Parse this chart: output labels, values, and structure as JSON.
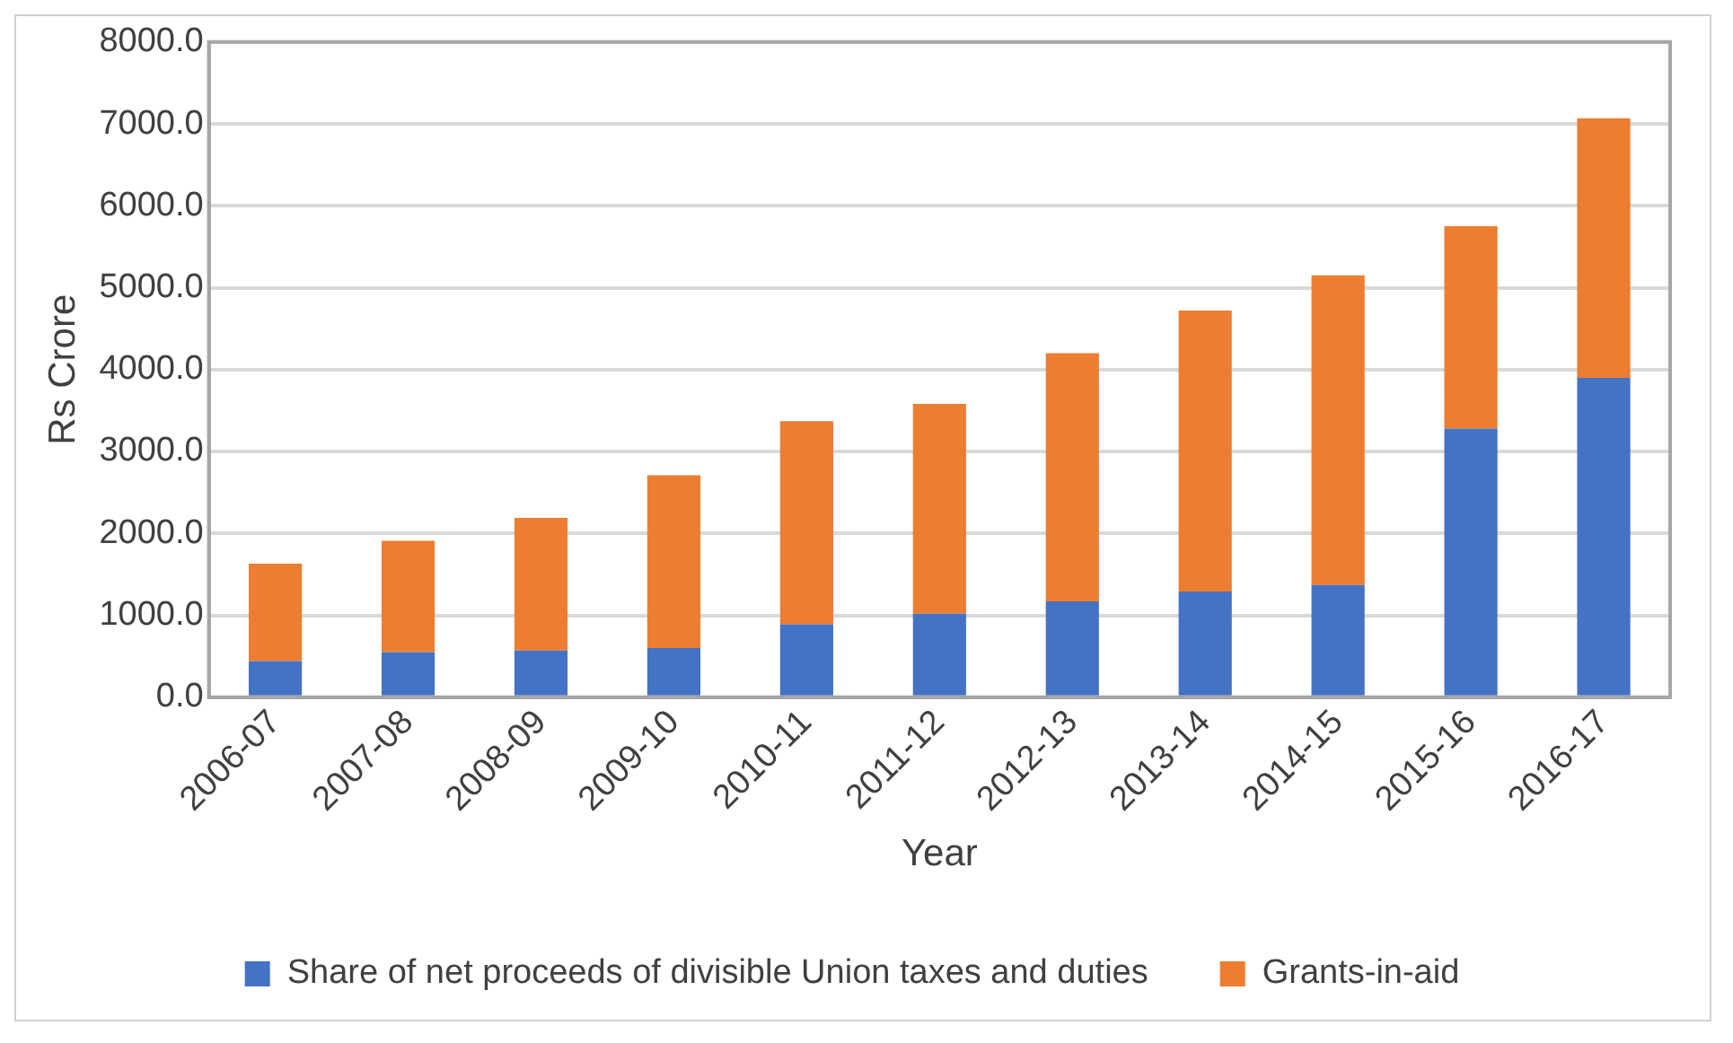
{
  "chart_data": {
    "type": "bar",
    "stacked": true,
    "xlabel": "Year",
    "ylabel": "Rs Crore",
    "categories": [
      "2006-07",
      "2007-08",
      "2008-09",
      "2009-10",
      "2010-11",
      "2011-12",
      "2012-13",
      "2013-14",
      "2014-15",
      "2015-16",
      "2016-17"
    ],
    "series": [
      {
        "name": "Share of net proceeds of divisible Union taxes and duties",
        "color": "#4472c4",
        "values": [
          440,
          550,
          570,
          600,
          890,
          1020,
          1170,
          1290,
          1370,
          3280,
          3900
        ]
      },
      {
        "name": "Grants-in-aid",
        "color": "#ed7d31",
        "values": [
          1190,
          1360,
          1620,
          2110,
          2480,
          2560,
          3030,
          3430,
          3780,
          2470,
          3170
        ]
      }
    ],
    "ylim": [
      0,
      8000
    ],
    "yticks": [
      {
        "value": 0,
        "label": "0.0"
      },
      {
        "value": 1000,
        "label": "1000.0"
      },
      {
        "value": 2000,
        "label": "2000.0"
      },
      {
        "value": 3000,
        "label": "3000.0"
      },
      {
        "value": 4000,
        "label": "4000.0"
      },
      {
        "value": 5000,
        "label": "5000.0"
      },
      {
        "value": 6000,
        "label": "6000.0"
      },
      {
        "value": 7000,
        "label": "7000.0"
      },
      {
        "value": 8000,
        "label": "8000.0"
      }
    ],
    "grid": "y",
    "legend": "bottom"
  }
}
